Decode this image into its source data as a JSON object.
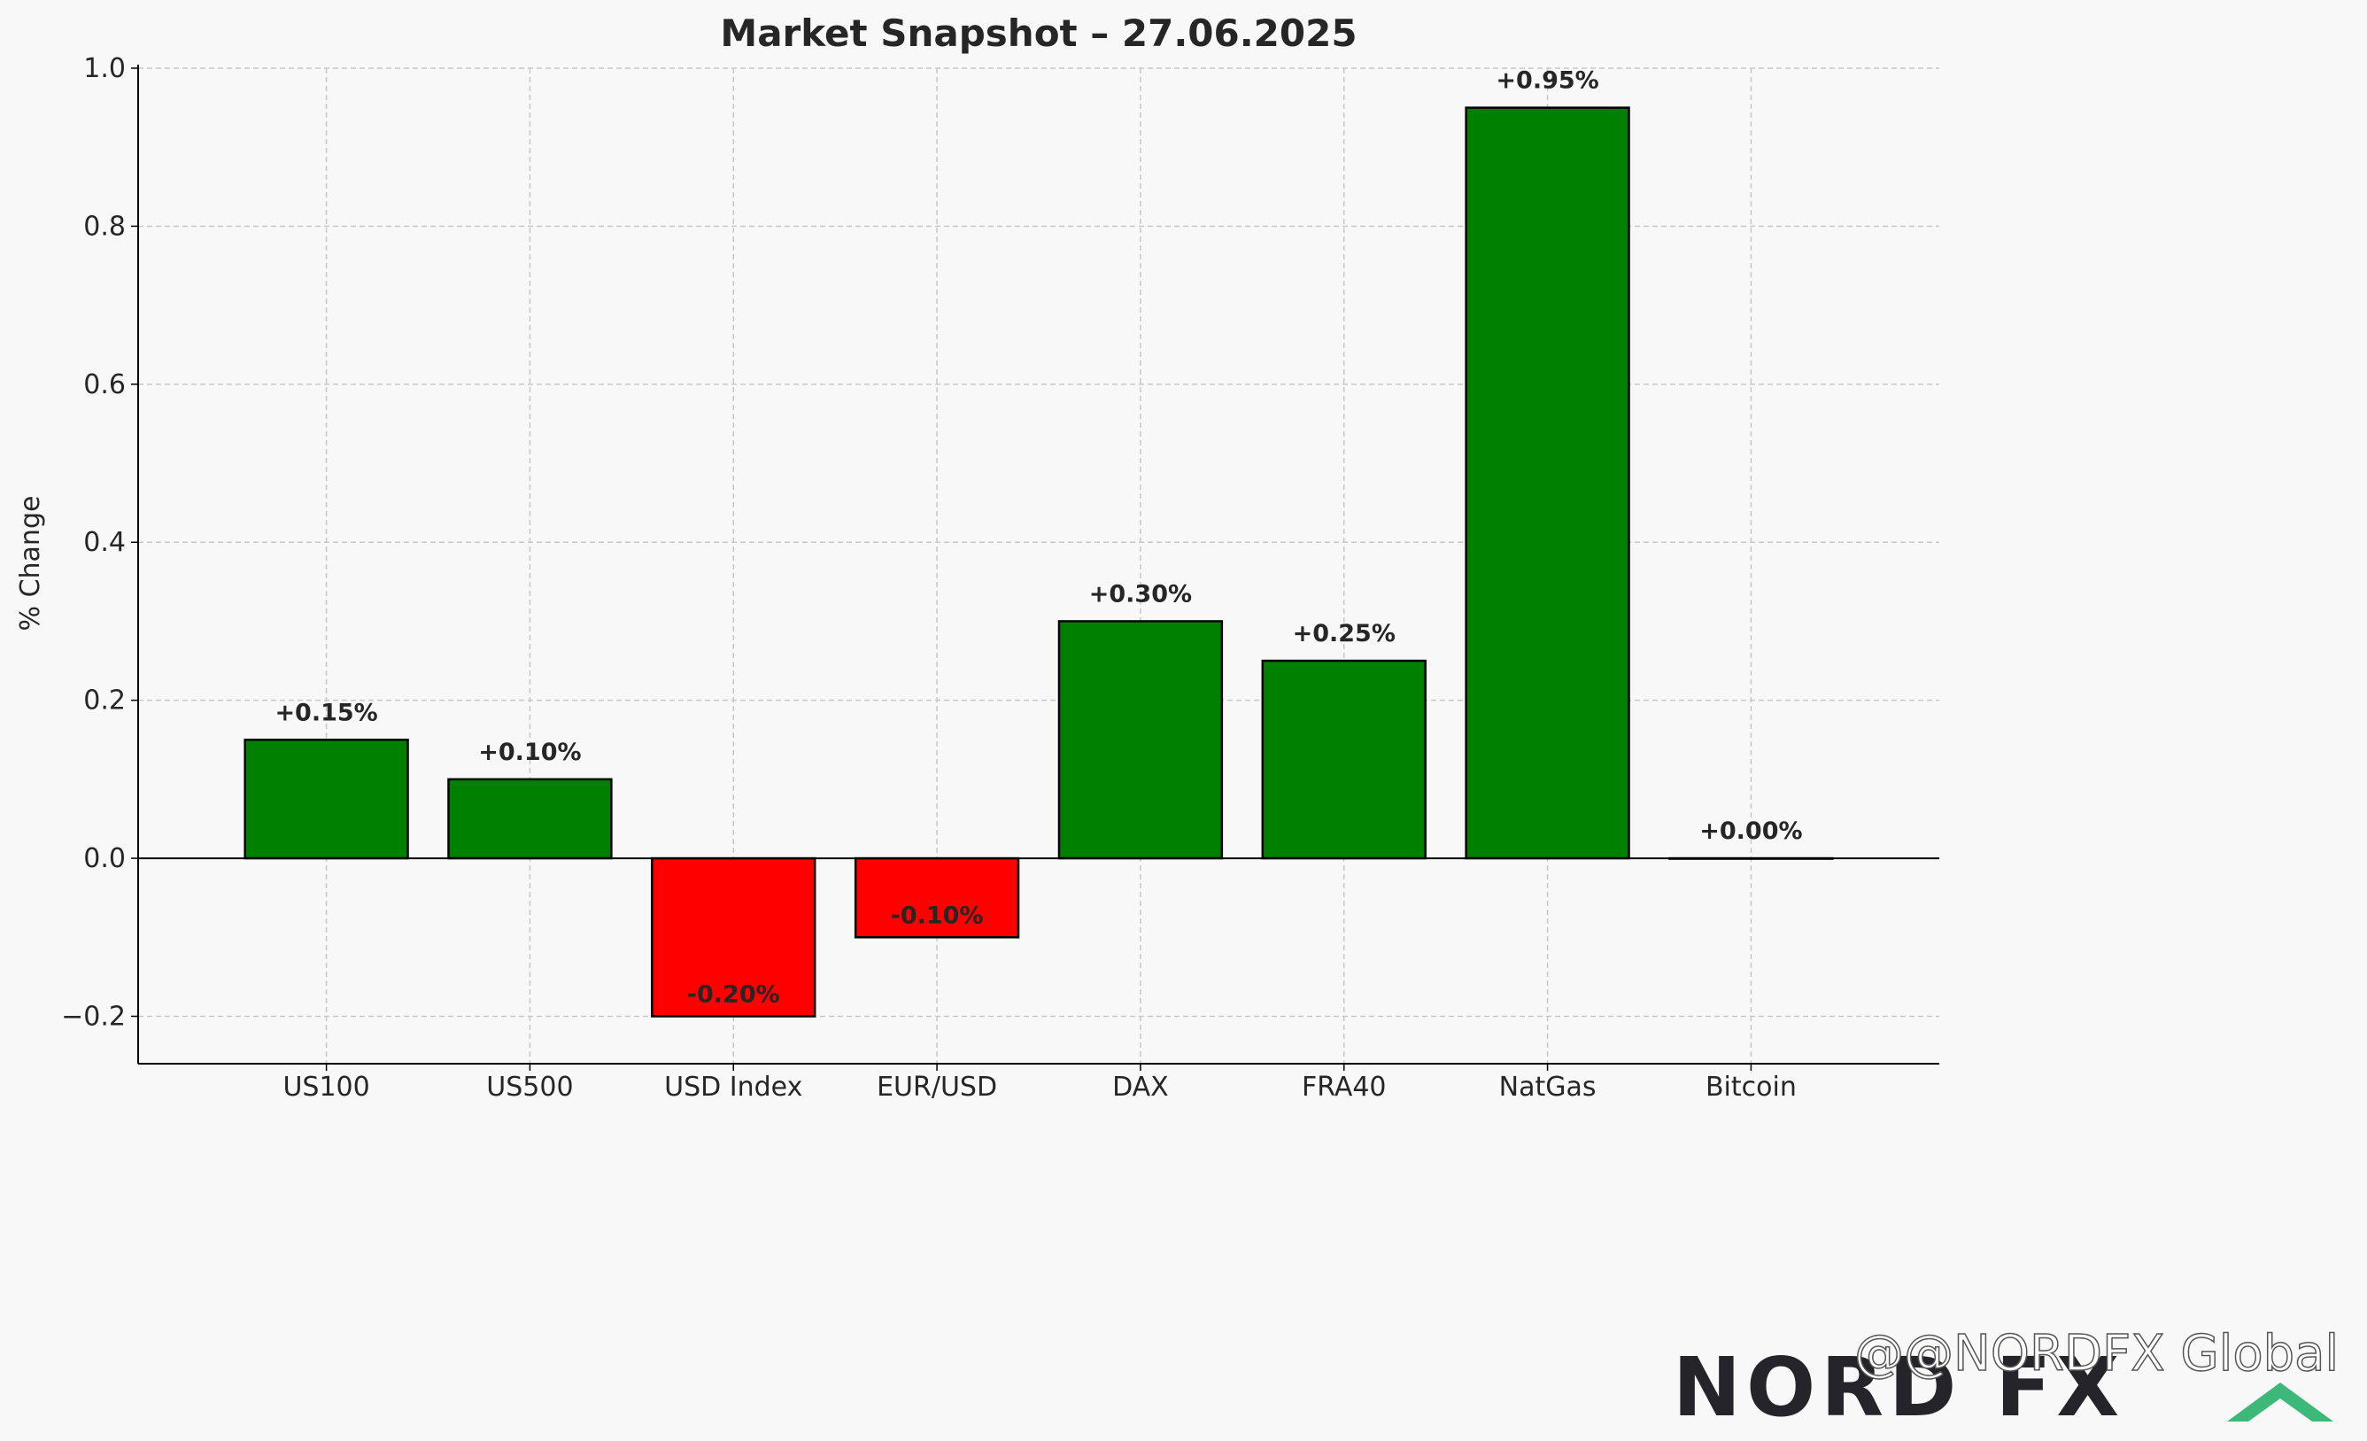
{
  "chart_data": {
    "type": "bar",
    "title": "Market Snapshot – 27.06.2025",
    "xlabel": "",
    "ylabel": "% Change",
    "categories": [
      "US100",
      "US500",
      "USD Index",
      "EUR/USD",
      "DAX",
      "FRA40",
      "NatGas",
      "Bitcoin"
    ],
    "values": [
      0.15,
      0.1,
      -0.2,
      -0.1,
      0.3,
      0.25,
      0.95,
      0.0
    ],
    "value_labels": [
      "+0.15%",
      "+0.10%",
      "-0.20%",
      "-0.10%",
      "+0.30%",
      "+0.25%",
      "+0.95%",
      "+0.00%"
    ],
    "ylim": [
      -0.26,
      1.0
    ],
    "yticks": [
      -0.2,
      0.0,
      0.2,
      0.4,
      0.6,
      0.8,
      1.0
    ],
    "ytick_labels": [
      "−0.2",
      "0.0",
      "0.2",
      "0.4",
      "0.6",
      "0.8",
      "1.0"
    ],
    "grid": true,
    "colors": {
      "positive": "#008000",
      "negative": "#ff0000",
      "edge": "#000000",
      "grid": "#c8c8c8",
      "background": "#f8f8f8",
      "text": "#262626"
    }
  },
  "watermark": {
    "logo": "NORD FX",
    "handle": "@NORDFX Global",
    "handle_icon": "threads-icon",
    "chevron_color": "#3cb878"
  }
}
